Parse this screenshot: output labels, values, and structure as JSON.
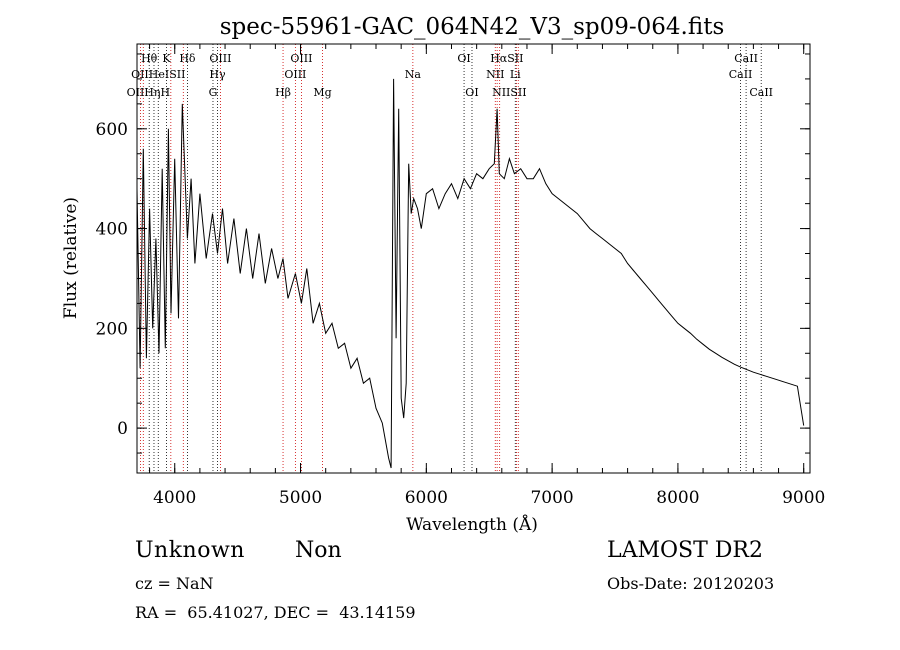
{
  "chart_data": {
    "type": "line",
    "title": "spec-55961-GAC_064N42_V3_sp09-064.fits",
    "xlabel": "Wavelength (Å)",
    "ylabel": "Flux (relative)",
    "xlim": [
      3700,
      9050
    ],
    "ylim": [
      -90,
      770
    ],
    "xticks": [
      4000,
      5000,
      6000,
      7000,
      8000,
      9000
    ],
    "xtick_labels": [
      "4000",
      "5000",
      "6000",
      "7000",
      "8000",
      "9000"
    ],
    "yticks": [
      0,
      200,
      400,
      600
    ],
    "ytick_labels": [
      "0",
      "200",
      "400",
      "600"
    ],
    "grid": false,
    "series": [
      {
        "x": [
          3700,
          3725,
          3750,
          3775,
          3800,
          3825,
          3850,
          3875,
          3900,
          3925,
          3950,
          3970,
          4000,
          4030,
          4060,
          4101,
          4130,
          4160,
          4200,
          4250,
          4300,
          4340,
          4380,
          4420,
          4470,
          4520,
          4570,
          4620,
          4670,
          4720,
          4770,
          4820,
          4861,
          4900,
          4959,
          5007,
          5050,
          5100,
          5150,
          5200,
          5250,
          5300,
          5350,
          5400,
          5450,
          5500,
          5550,
          5600,
          5650,
          5700,
          5720,
          5740,
          5760,
          5780,
          5800,
          5820,
          5840,
          5860,
          5880,
          5900,
          5930,
          5960,
          6000,
          6050,
          6100,
          6150,
          6200,
          6250,
          6300,
          6350,
          6400,
          6450,
          6500,
          6540,
          6563,
          6580,
          6620,
          6660,
          6700,
          6750,
          6800,
          6850,
          6900,
          6950,
          7000,
          7050,
          7100,
          7150,
          7200,
          7250,
          7300,
          7350,
          7400,
          7450,
          7500,
          7550,
          7600,
          7650,
          7700,
          7750,
          7800,
          7850,
          7900,
          7950,
          8000,
          8050,
          8100,
          8150,
          8200,
          8250,
          8300,
          8350,
          8400,
          8450,
          8500,
          8550,
          8600,
          8650,
          8700,
          8750,
          8800,
          8850,
          8900,
          8950,
          9000
        ],
        "y": [
          480,
          120,
          560,
          140,
          440,
          200,
          380,
          150,
          520,
          160,
          600,
          230,
          540,
          220,
          650,
          380,
          500,
          330,
          470,
          340,
          430,
          350,
          440,
          330,
          420,
          310,
          400,
          300,
          390,
          290,
          360,
          300,
          340,
          260,
          310,
          250,
          320,
          210,
          250,
          190,
          210,
          160,
          170,
          120,
          140,
          90,
          100,
          40,
          10,
          -60,
          -80,
          700,
          180,
          640,
          60,
          20,
          90,
          530,
          430,
          460,
          440,
          400,
          470,
          480,
          440,
          470,
          490,
          460,
          500,
          480,
          510,
          500,
          520,
          530,
          640,
          510,
          500,
          540,
          510,
          520,
          500,
          500,
          520,
          490,
          470,
          460,
          450,
          440,
          430,
          415,
          400,
          390,
          380,
          370,
          360,
          350,
          330,
          315,
          300,
          285,
          270,
          255,
          240,
          225,
          210,
          200,
          190,
          178,
          168,
          158,
          150,
          142,
          135,
          128,
          122,
          117,
          112,
          108,
          104,
          100,
          96,
          92,
          88,
          84,
          5
        ]
      }
    ],
    "lines": [
      {
        "w": 3727,
        "labels": [
          "OII"
        ]
      },
      {
        "w": 3750,
        "labels": [
          "OII"
        ]
      },
      {
        "w": 3797,
        "labels": [
          "Hθ"
        ]
      },
      {
        "w": 3835,
        "labels": [
          "Hη"
        ]
      },
      {
        "w": 3869,
        "labels": [
          "HeI"
        ]
      },
      {
        "w": 3934,
        "labels": [
          "K"
        ]
      },
      {
        "w": 3969,
        "labels": [
          "SII",
          "H"
        ]
      },
      {
        "w": 4068,
        "labels": [
          "SII"
        ]
      },
      {
        "w": 4101,
        "labels": [
          "Hδ"
        ]
      },
      {
        "w": 4304,
        "labels": [
          "G"
        ]
      },
      {
        "w": 4340,
        "labels": [
          "Hγ"
        ]
      },
      {
        "w": 4363,
        "labels": [
          "OIII"
        ]
      },
      {
        "w": 4861,
        "labels": [
          "Hβ"
        ]
      },
      {
        "w": 4959,
        "labels": [
          "OIII"
        ]
      },
      {
        "w": 5007,
        "labels": [
          "OIII"
        ]
      },
      {
        "w": 5175,
        "labels": [
          "Mg"
        ]
      },
      {
        "w": 5893,
        "labels": [
          "Na"
        ]
      },
      {
        "w": 6300,
        "labels": [
          "OI"
        ]
      },
      {
        "w": 6363,
        "labels": [
          "OI"
        ]
      },
      {
        "w": 6548,
        "labels": [
          "NII"
        ]
      },
      {
        "w": 6563,
        "labels": [
          "Hα"
        ]
      },
      {
        "w": 6583,
        "labels": [
          "NII"
        ]
      },
      {
        "w": 6707,
        "labels": [
          "Li"
        ]
      },
      {
        "w": 6717,
        "labels": [
          "SII"
        ]
      },
      {
        "w": 6731,
        "labels": [
          "SII"
        ]
      },
      {
        "w": 8498,
        "labels": [
          "CaII"
        ]
      },
      {
        "w": 8542,
        "labels": [
          "CaII"
        ]
      },
      {
        "w": 8662,
        "labels": [
          "CaII"
        ]
      }
    ],
    "line_colors": {
      "emission": "#cc0000",
      "absorption": "#000000"
    },
    "line_label_rows": [
      [
        {
          "text": "Hθ",
          "w": 3797
        },
        {
          "text": "K",
          "w": 3934
        },
        {
          "text": "Hδ",
          "w": 4101
        },
        {
          "text": "OIII",
          "w": 4363
        },
        {
          "text": "OIII",
          "w": 5007
        },
        {
          "text": "OI",
          "w": 6300
        },
        {
          "text": "HαSII",
          "w": 6640
        },
        {
          "text": "CaII",
          "w": 8542
        }
      ],
      [
        {
          "text": "OIIHeISII",
          "w": 3869
        },
        {
          "text": "Hγ",
          "w": 4340
        },
        {
          "text": "OIII",
          "w": 4959
        },
        {
          "text": "Na",
          "w": 5893
        },
        {
          "text": "NII",
          "w": 6548
        },
        {
          "text": "Li",
          "w": 6707
        },
        {
          "text": "CaII",
          "w": 8498
        }
      ],
      [
        {
          "text": "OIIHηH",
          "w": 3790
        },
        {
          "text": "G",
          "w": 4304
        },
        {
          "text": "Hβ",
          "w": 4861
        },
        {
          "text": "Mg",
          "w": 5175
        },
        {
          "text": "OI",
          "w": 6363
        },
        {
          "text": "NIISII",
          "w": 6660
        },
        {
          "text": "CaII",
          "w": 8662
        }
      ]
    ]
  },
  "info": {
    "obj_class": "Unknown",
    "obj_subclass": "Non",
    "survey": "LAMOST DR2",
    "cz": "cz = NaN",
    "obs_date": "Obs-Date: 20120203",
    "radec": "RA =  65.41027, DEC =  43.14159"
  }
}
